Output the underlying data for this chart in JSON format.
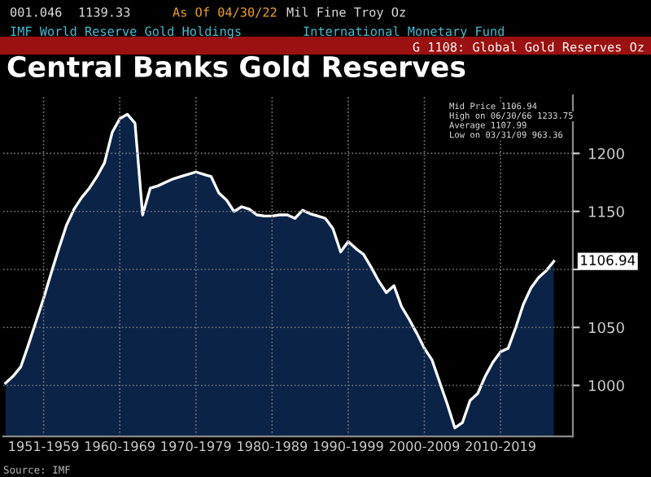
{
  "chart_data": {
    "type": "area",
    "title": "Central Banks Gold Reserves",
    "color": "#0b2347",
    "categories": [
      null,
      null,
      null,
      null,
      null,
      "1951-1959",
      null,
      null,
      null,
      null,
      null,
      null,
      null,
      null,
      null,
      "1960-1969",
      null,
      null,
      null,
      null,
      null,
      null,
      null,
      null,
      null,
      "1970-1979",
      null,
      null,
      null,
      null,
      null,
      null,
      null,
      null,
      null,
      "1980-1989",
      null,
      null,
      null,
      null,
      null,
      null,
      null,
      null,
      null,
      "1990-1999",
      null,
      null,
      null,
      null,
      null,
      null,
      null,
      null,
      null,
      "2000-2009",
      null,
      null,
      null,
      null,
      null,
      null,
      null,
      null,
      null,
      "2010-2019",
      null,
      null,
      null,
      null,
      null,
      null,
      null
    ],
    "values": [
      1002,
      1008,
      1016,
      1035,
      1055,
      1075,
      1097,
      1118,
      1138,
      1152,
      1162,
      1170,
      1180,
      1192,
      1218,
      1230,
      1233.75,
      1226,
      1147,
      1170,
      1172,
      1175,
      1178,
      1180,
      1182,
      1184,
      1182,
      1180,
      1166,
      1160,
      1150,
      1154,
      1152,
      1147,
      1146,
      1146,
      1147,
      1147,
      1144,
      1151,
      1148,
      1146,
      1144,
      1135,
      1115,
      1124,
      1118,
      1113,
      1102,
      1090,
      1080,
      1086,
      1068,
      1057,
      1045,
      1032,
      1022,
      1003,
      984,
      963.36,
      968,
      987,
      993,
      1008,
      1020,
      1029,
      1032,
      1050,
      1070,
      1084,
      1093,
      1099,
      1106.94
    ],
    "ylim": [
      956,
      1250
    ],
    "yticks": [
      1000,
      1050,
      {
        "value": 1100,
        "label": null
      },
      1150,
      1200
    ],
    "grid": true,
    "annotations": [
      "001.046",
      "1139.33",
      "As Of 04/30/22",
      "Mil Fine Troy Oz",
      "IMF World Reserve Gold Holdings",
      "International Monetary Fund",
      "G 1108: Global Gold Reserves Oz",
      "Mid Price 1106.94",
      "High on 06/30/66 1233.75",
      "Average 1107.99",
      "Low on 03/31/09 963.36",
      "Source: IMF",
      "1106.94"
    ]
  }
}
